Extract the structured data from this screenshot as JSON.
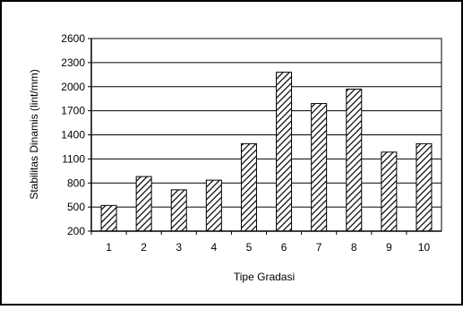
{
  "chart_data": {
    "type": "bar",
    "categories": [
      "1",
      "2",
      "3",
      "4",
      "5",
      "6",
      "7",
      "8",
      "9",
      "10"
    ],
    "values": [
      520,
      880,
      715,
      835,
      1290,
      2180,
      1790,
      1970,
      1185,
      1290
    ],
    "title": "",
    "xlabel": "Tipe Gradasi",
    "ylabel": "Stabilitas Dinamis (lint/mm)",
    "ylim": [
      200,
      2600
    ],
    "yticks": [
      "200",
      "500",
      "800",
      "1100",
      "1400",
      "1700",
      "2000",
      "2300",
      "2600"
    ],
    "grid": true,
    "legend": "none",
    "bar_fill": "diagonal-hatch",
    "colors": {
      "bar_stroke": "#000000",
      "hatch": "#000000",
      "background": "#ffffff",
      "grid": "#000000"
    }
  }
}
